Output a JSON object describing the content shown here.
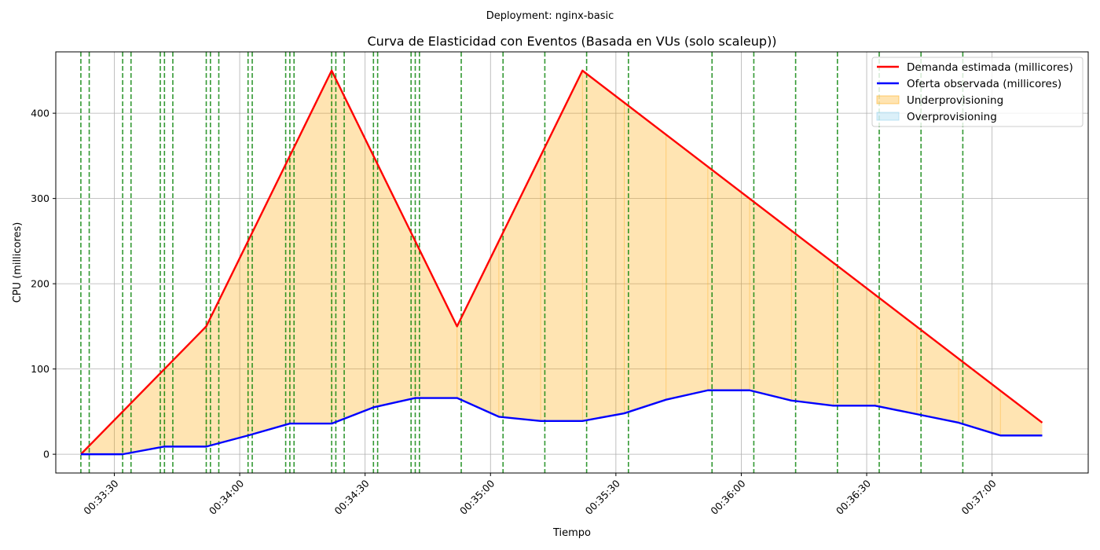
{
  "chart_data": {
    "type": "line",
    "suptitle": "Deployment: nginx-basic",
    "title": "Curva de Elasticidad con Eventos (Basada en VUs (solo scaleup))",
    "xlabel": "Tiempo",
    "ylabel": "CPU (millicores)",
    "grid": true,
    "legend_position": "upper right",
    "xlim": [
      "00:33:16",
      "00:37:23"
    ],
    "ylim": [
      -22,
      472
    ],
    "x_ticks": [
      "00:33:30",
      "00:34:00",
      "00:34:30",
      "00:35:00",
      "00:35:30",
      "00:36:00",
      "00:36:30",
      "00:37:00"
    ],
    "y_ticks": [
      0,
      100,
      200,
      300,
      400
    ],
    "series": [
      {
        "name": "Demanda estimada (millicores)",
        "color": "#ff0000",
        "x": [
          "00:33:22",
          "00:33:52",
          "00:34:22",
          "00:34:52",
          "00:35:22",
          "00:37:12"
        ],
        "values": [
          0,
          150,
          450,
          150,
          450,
          37
        ]
      },
      {
        "name": "Oferta observada (millicores)",
        "color": "#0000ff",
        "x": [
          "00:33:22",
          "00:33:32",
          "00:33:42",
          "00:33:52",
          "00:34:02",
          "00:34:12",
          "00:34:22",
          "00:34:32",
          "00:34:42",
          "00:34:52",
          "00:35:02",
          "00:35:12",
          "00:35:22",
          "00:35:32",
          "00:35:42",
          "00:35:52",
          "00:36:02",
          "00:36:12",
          "00:36:22",
          "00:36:32",
          "00:36:42",
          "00:36:52",
          "00:37:02",
          "00:37:12"
        ],
        "values": [
          0,
          0,
          9,
          9,
          22,
          36,
          36,
          55,
          66,
          66,
          44,
          39,
          39,
          48,
          64,
          75,
          75,
          63,
          57,
          57,
          47,
          37,
          22,
          22
        ]
      }
    ],
    "fills": [
      {
        "name": "Underprovisioning",
        "color": "#ffa500",
        "opacity": 0.3
      },
      {
        "name": "Overprovisioning",
        "color": "#87ceeb",
        "opacity": 0.3
      }
    ],
    "event_lines": {
      "color": "#008000",
      "style": "dashed",
      "x": [
        "00:33:22",
        "00:33:24",
        "00:33:32",
        "00:33:34",
        "00:33:41",
        "00:33:42",
        "00:33:44",
        "00:33:52",
        "00:33:53",
        "00:33:55",
        "00:34:02",
        "00:34:03",
        "00:34:11",
        "00:34:12",
        "00:34:13",
        "00:34:22",
        "00:34:23",
        "00:34:25",
        "00:34:32",
        "00:34:33",
        "00:34:41",
        "00:34:42",
        "00:34:43",
        "00:34:53",
        "00:35:03",
        "00:35:13",
        "00:35:23",
        "00:35:33",
        "00:35:53",
        "00:36:03",
        "00:36:13",
        "00:36:23",
        "00:36:33",
        "00:36:43",
        "00:36:53"
      ]
    }
  }
}
